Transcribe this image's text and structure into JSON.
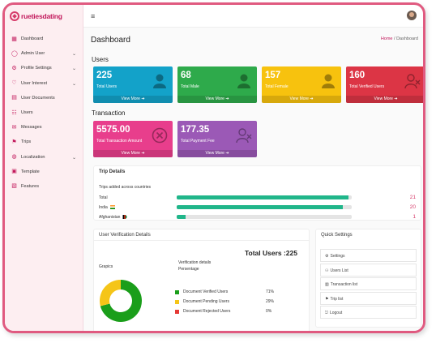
{
  "brand": {
    "name": "ruetiesdating"
  },
  "sidebar": {
    "items": [
      {
        "label": "Dashboard",
        "icon": "dashboard-icon",
        "glyph": "▦",
        "chevron": false
      },
      {
        "label": "Admin User",
        "icon": "user-icon",
        "glyph": "◯",
        "chevron": true
      },
      {
        "label": "Profile Settings",
        "icon": "settings-icon",
        "glyph": "⚙",
        "chevron": true
      },
      {
        "label": "User Interest",
        "icon": "heart-icon",
        "glyph": "♡",
        "chevron": true
      },
      {
        "label": "User Documents",
        "icon": "document-icon",
        "glyph": "▤",
        "chevron": false
      },
      {
        "label": "Users",
        "icon": "users-icon",
        "glyph": "☷",
        "chevron": false
      },
      {
        "label": "Messages",
        "icon": "messages-icon",
        "glyph": "✉",
        "chevron": false
      },
      {
        "label": "Trips",
        "icon": "trips-icon",
        "glyph": "⚑",
        "chevron": false
      },
      {
        "label": "Localization",
        "icon": "globe-icon",
        "glyph": "◍",
        "chevron": true
      },
      {
        "label": "Template",
        "icon": "template-icon",
        "glyph": "▣",
        "chevron": false
      },
      {
        "label": "Features",
        "icon": "features-icon",
        "glyph": "▧",
        "chevron": false
      }
    ]
  },
  "header": {
    "title": "Dashboard",
    "breadcrumb_home": "Home",
    "breadcrumb_sep": "/",
    "breadcrumb_current": "Dashboard"
  },
  "users_section": {
    "title": "Users"
  },
  "user_cards": [
    {
      "value": "225",
      "label": "Total Users",
      "footer": "View More ➔",
      "color": "#13a2c9",
      "icon": "user-icon"
    },
    {
      "value": "68",
      "label": "Total Male",
      "footer": "View More ➔",
      "color": "#2eaa4b",
      "icon": "male-icon"
    },
    {
      "value": "157",
      "label": "Total Female",
      "footer": "View More ➔",
      "color": "#f7c20e",
      "icon": "female-icon"
    },
    {
      "value": "160",
      "label": "Total Verified Users",
      "footer": "View More ➔",
      "color": "#dc3545",
      "icon": "verified-user-icon"
    }
  ],
  "transaction_section": {
    "title": "Transaction"
  },
  "transaction_cards": [
    {
      "value": "5575.00",
      "label": "Total Transaction Amount",
      "footer": "View More ➔",
      "color": "#e83e8c",
      "icon": "cancel-circle-icon"
    },
    {
      "value": "177.35",
      "label": "Total Payment Fee",
      "footer": "View More ➔",
      "color": "#9b59b6",
      "icon": "user-remove-icon"
    }
  ],
  "trip_details": {
    "title": "Trip Details",
    "subtitle": "Trips added across countries",
    "rows": [
      {
        "name": "Total",
        "count": "21",
        "fraction": 0.98,
        "flag": ""
      },
      {
        "name": "India",
        "count": "20",
        "fraction": 0.95,
        "flag": "india-flag-icon"
      },
      {
        "name": "Afghanistan",
        "count": "1",
        "fraction": 0.05,
        "flag": "afghanistan-flag-icon"
      }
    ]
  },
  "verification": {
    "title": "User Verification Details",
    "total_label": "Total Users :225",
    "graphs_label": "Grapics",
    "details_title": "Verification details",
    "details_subtitle": "Persentage",
    "items": [
      {
        "label": "Document Verified Users",
        "pct": "71%",
        "color": "#1a9e1a",
        "value": 71
      },
      {
        "label": "Document Pending Users",
        "pct": "29%",
        "color": "#f5c518",
        "value": 29
      },
      {
        "label": "Document Rejected Users",
        "pct": "0%",
        "color": "#e53935",
        "value": 0
      }
    ]
  },
  "quick_settings": {
    "title": "Quick Settings",
    "items": [
      {
        "label": "Settings",
        "icon": "gear-icon",
        "glyph": "⚙"
      },
      {
        "label": "Users List",
        "icon": "users-icon",
        "glyph": "⚇"
      },
      {
        "label": "Transaction list",
        "icon": "transaction-icon",
        "glyph": "▥"
      },
      {
        "label": "Trip list",
        "icon": "trip-icon",
        "glyph": "⚑"
      },
      {
        "label": "Logout",
        "icon": "logout-icon",
        "glyph": "⎋"
      }
    ]
  }
}
